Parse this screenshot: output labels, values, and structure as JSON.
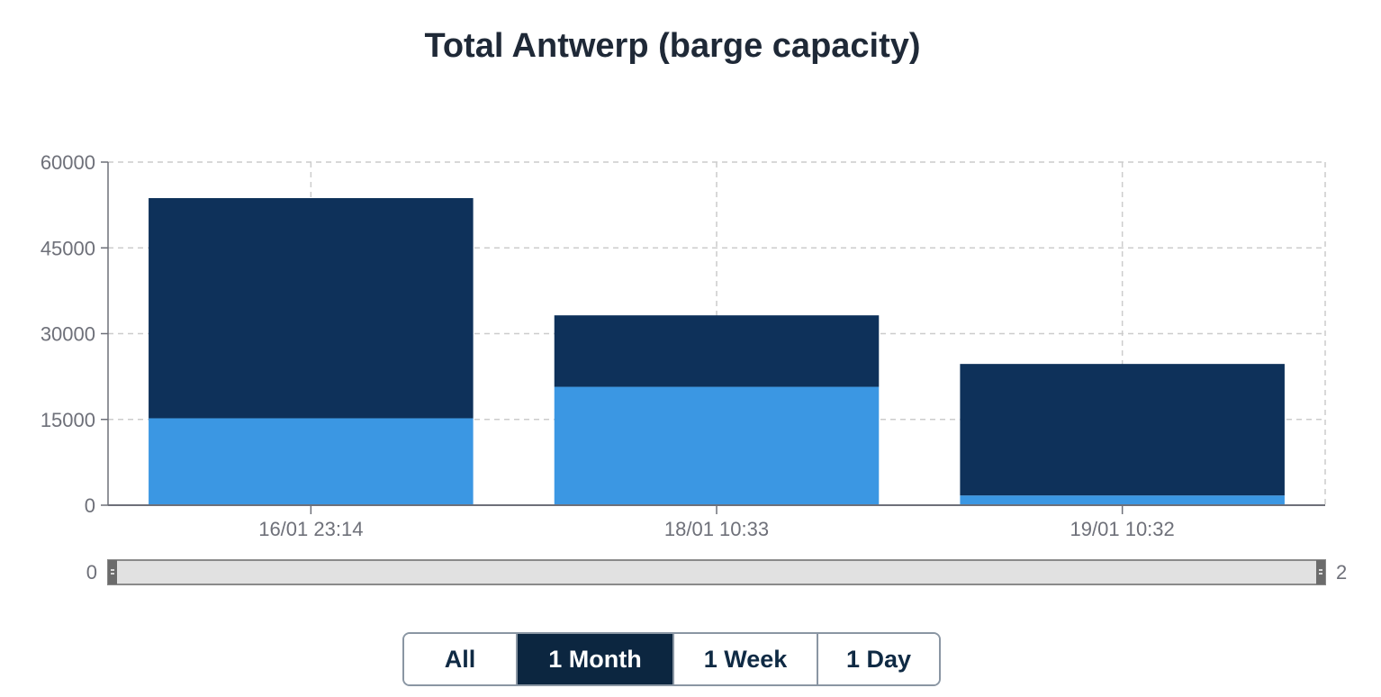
{
  "chart_data": {
    "type": "bar",
    "stacked": true,
    "title": "Total Antwerp (barge capacity)",
    "categories": [
      "16/01 23:14",
      "18/01 10:33",
      "19/01 10:32"
    ],
    "series": [
      {
        "values": [
          15200,
          20700,
          1700
        ],
        "color": "#3b97e3"
      },
      {
        "values": [
          38500,
          12500,
          23000
        ],
        "color": "#0e315a"
      }
    ],
    "ylim": [
      0,
      60000
    ],
    "yticks": [
      "0",
      "15000",
      "30000",
      "45000",
      "60000"
    ],
    "grid": true,
    "slider": {
      "min_label": "0",
      "max_label": "2"
    }
  },
  "range_buttons": {
    "all": "All",
    "month": "1 Month",
    "week": "1 Week",
    "day": "1 Day",
    "active": "month"
  }
}
